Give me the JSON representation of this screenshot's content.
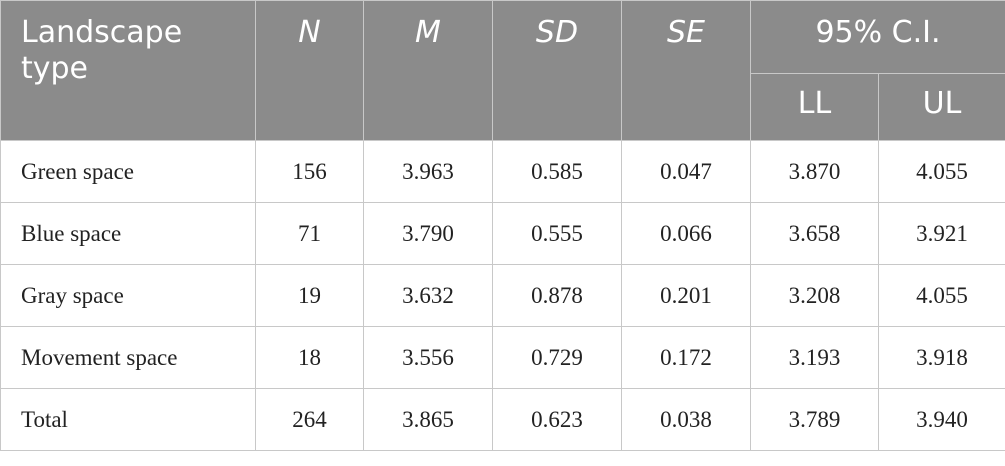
{
  "table": {
    "header": {
      "landscape_type": "Landscape type",
      "n": "N",
      "m": "M",
      "sd": "SD",
      "se": "SE",
      "ci": "95% C.I.",
      "ll": "LL",
      "ul": "UL"
    },
    "rows": [
      [
        "Green space",
        "156",
        "3.963",
        "0.585",
        "0.047",
        "3.870",
        "4.055"
      ],
      [
        "Blue space",
        "71",
        "3.790",
        "0.555",
        "0.066",
        "3.658",
        "3.921"
      ],
      [
        "Gray space",
        "19",
        "3.632",
        "0.878",
        "0.201",
        "3.208",
        "4.055"
      ],
      [
        "Movement space",
        "18",
        "3.556",
        "0.729",
        "0.172",
        "3.193",
        "3.918"
      ],
      [
        "Total",
        "264",
        "3.865",
        "0.623",
        "0.038",
        "3.789",
        "3.940"
      ]
    ]
  }
}
